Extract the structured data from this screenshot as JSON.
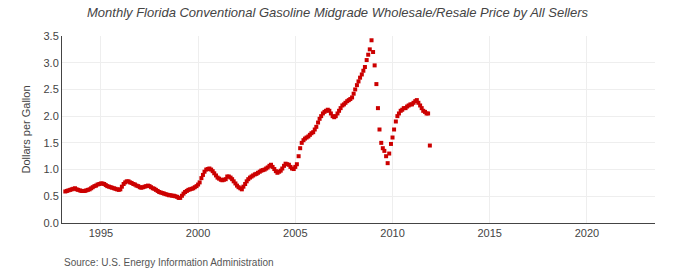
{
  "chart_data": {
    "type": "scatter",
    "title": "Monthly Florida Conventional Gasoline Midgrade Wholesale/Resale Price by All Sellers",
    "ylabel": "Dollars per Gallon",
    "annotations": [
      "Source: U.S. Energy Information Administration"
    ],
    "color": "#cc0000",
    "marker": "square",
    "grid": true,
    "xlim": [
      1993.0,
      2023.5
    ],
    "ylim": [
      0.0,
      3.5
    ],
    "xticks": [
      1995,
      2000,
      2005,
      2010,
      2015,
      2020
    ],
    "yticks": [
      {
        "value": 0.0,
        "label": "0.0"
      },
      0.5,
      {
        "value": 1.0,
        "label": "1.0"
      },
      1.5,
      {
        "value": 2.0,
        "label": "2.0"
      },
      2.5,
      {
        "value": 3.0,
        "label": "3.0"
      },
      3.5
    ],
    "x": [
      1993.17,
      1993.25,
      1993.33,
      1993.42,
      1993.5,
      1993.58,
      1993.67,
      1993.75,
      1993.83,
      1993.92,
      1994.0,
      1994.08,
      1994.17,
      1994.25,
      1994.33,
      1994.42,
      1994.5,
      1994.58,
      1994.67,
      1994.75,
      1994.83,
      1994.92,
      1995.0,
      1995.08,
      1995.17,
      1995.25,
      1995.33,
      1995.42,
      1995.5,
      1995.58,
      1995.67,
      1995.75,
      1995.83,
      1995.92,
      1996.0,
      1996.08,
      1996.17,
      1996.25,
      1996.33,
      1996.42,
      1996.5,
      1996.58,
      1996.67,
      1996.75,
      1996.83,
      1996.92,
      1997.0,
      1997.08,
      1997.17,
      1997.25,
      1997.33,
      1997.42,
      1997.5,
      1997.58,
      1997.67,
      1997.75,
      1997.83,
      1997.92,
      1998.0,
      1998.08,
      1998.17,
      1998.25,
      1998.33,
      1998.42,
      1998.5,
      1998.58,
      1998.67,
      1998.75,
      1998.83,
      1998.92,
      1999.0,
      1999.08,
      1999.17,
      1999.25,
      1999.33,
      1999.42,
      1999.5,
      1999.58,
      1999.67,
      1999.75,
      1999.83,
      1999.92,
      2000.0,
      2000.08,
      2000.17,
      2000.25,
      2000.33,
      2000.42,
      2000.5,
      2000.58,
      2000.67,
      2000.75,
      2000.83,
      2000.92,
      2001.0,
      2001.08,
      2001.17,
      2001.25,
      2001.33,
      2001.42,
      2001.5,
      2001.58,
      2001.67,
      2001.75,
      2001.83,
      2001.92,
      2002.0,
      2002.08,
      2002.17,
      2002.25,
      2002.33,
      2002.42,
      2002.5,
      2002.58,
      2002.67,
      2002.75,
      2002.83,
      2002.92,
      2003.0,
      2003.08,
      2003.17,
      2003.25,
      2003.33,
      2003.42,
      2003.5,
      2003.58,
      2003.67,
      2003.75,
      2003.83,
      2003.92,
      2004.0,
      2004.08,
      2004.17,
      2004.25,
      2004.33,
      2004.42,
      2004.5,
      2004.58,
      2004.67,
      2004.75,
      2004.83,
      2004.92,
      2005.0,
      2005.08,
      2005.17,
      2005.25,
      2005.33,
      2005.42,
      2005.5,
      2005.58,
      2005.67,
      2005.75,
      2005.83,
      2005.92,
      2006.0,
      2006.08,
      2006.17,
      2006.25,
      2006.33,
      2006.42,
      2006.5,
      2006.58,
      2006.67,
      2006.75,
      2006.83,
      2006.92,
      2007.0,
      2007.08,
      2007.17,
      2007.25,
      2007.33,
      2007.42,
      2007.5,
      2007.58,
      2007.67,
      2007.75,
      2007.83,
      2007.92,
      2008.0,
      2008.08,
      2008.17,
      2008.25,
      2008.33,
      2008.42,
      2008.5,
      2008.58,
      2008.67,
      2008.75,
      2008.83,
      2008.92,
      2009.0,
      2009.08,
      2009.17,
      2009.25,
      2009.33,
      2009.42,
      2009.5,
      2009.58,
      2009.67,
      2009.75,
      2009.83,
      2009.92,
      2010.0,
      2010.08,
      2010.17,
      2010.25,
      2010.33,
      2010.42,
      2010.5,
      2010.58,
      2010.67,
      2010.75,
      2010.83,
      2010.92,
      2011.0,
      2011.08,
      2011.17,
      2011.25,
      2011.33,
      2011.42,
      2011.5,
      2011.58,
      2011.67,
      2011.75,
      2011.83,
      2011.92
    ],
    "values": [
      0.59,
      0.6,
      0.61,
      0.62,
      0.63,
      0.64,
      0.65,
      0.63,
      0.62,
      0.61,
      0.6,
      0.6,
      0.6,
      0.61,
      0.62,
      0.63,
      0.65,
      0.67,
      0.69,
      0.7,
      0.72,
      0.73,
      0.74,
      0.74,
      0.73,
      0.71,
      0.69,
      0.68,
      0.67,
      0.66,
      0.65,
      0.64,
      0.63,
      0.62,
      0.63,
      0.68,
      0.73,
      0.76,
      0.78,
      0.78,
      0.76,
      0.75,
      0.73,
      0.72,
      0.7,
      0.69,
      0.67,
      0.66,
      0.67,
      0.68,
      0.69,
      0.7,
      0.69,
      0.67,
      0.65,
      0.64,
      0.62,
      0.6,
      0.58,
      0.57,
      0.56,
      0.55,
      0.54,
      0.53,
      0.52,
      0.52,
      0.51,
      0.51,
      0.5,
      0.49,
      0.47,
      0.47,
      0.51,
      0.55,
      0.58,
      0.6,
      0.62,
      0.63,
      0.64,
      0.65,
      0.67,
      0.69,
      0.72,
      0.76,
      0.84,
      0.9,
      0.96,
      1.0,
      1.01,
      1.02,
      1.0,
      0.97,
      0.93,
      0.89,
      0.85,
      0.83,
      0.81,
      0.8,
      0.81,
      0.82,
      0.87,
      0.87,
      0.85,
      0.82,
      0.78,
      0.74,
      0.7,
      0.67,
      0.65,
      0.63,
      0.68,
      0.73,
      0.78,
      0.82,
      0.85,
      0.87,
      0.89,
      0.91,
      0.92,
      0.94,
      0.96,
      0.98,
      0.99,
      1.0,
      1.02,
      1.04,
      1.07,
      1.09,
      1.05,
      1.01,
      0.97,
      0.94,
      0.96,
      0.98,
      1.02,
      1.07,
      1.11,
      1.1,
      1.09,
      1.05,
      1.02,
      1.01,
      1.05,
      1.1,
      1.25,
      1.4,
      1.5,
      1.55,
      1.58,
      1.6,
      1.62,
      1.65,
      1.68,
      1.7,
      1.75,
      1.8,
      1.88,
      1.95,
      2.0,
      2.05,
      2.08,
      2.1,
      2.12,
      2.1,
      2.05,
      2.0,
      1.98,
      2.0,
      2.05,
      2.1,
      2.15,
      2.2,
      2.22,
      2.25,
      2.28,
      2.3,
      2.32,
      2.35,
      2.42,
      2.5,
      2.58,
      2.65,
      2.72,
      2.78,
      2.85,
      2.92,
      3.05,
      3.15,
      3.25,
      3.42,
      3.2,
      2.95,
      2.6,
      2.15,
      1.75,
      1.5,
      1.4,
      1.35,
      1.25,
      1.12,
      1.3,
      1.48,
      1.6,
      1.75,
      1.9,
      2.0,
      2.05,
      2.1,
      2.12,
      2.15,
      2.15,
      2.18,
      2.2,
      2.22,
      2.22,
      2.25,
      2.28,
      2.3,
      2.25,
      2.2,
      2.15,
      2.1,
      2.08,
      2.05,
      2.05,
      1.45
    ]
  }
}
